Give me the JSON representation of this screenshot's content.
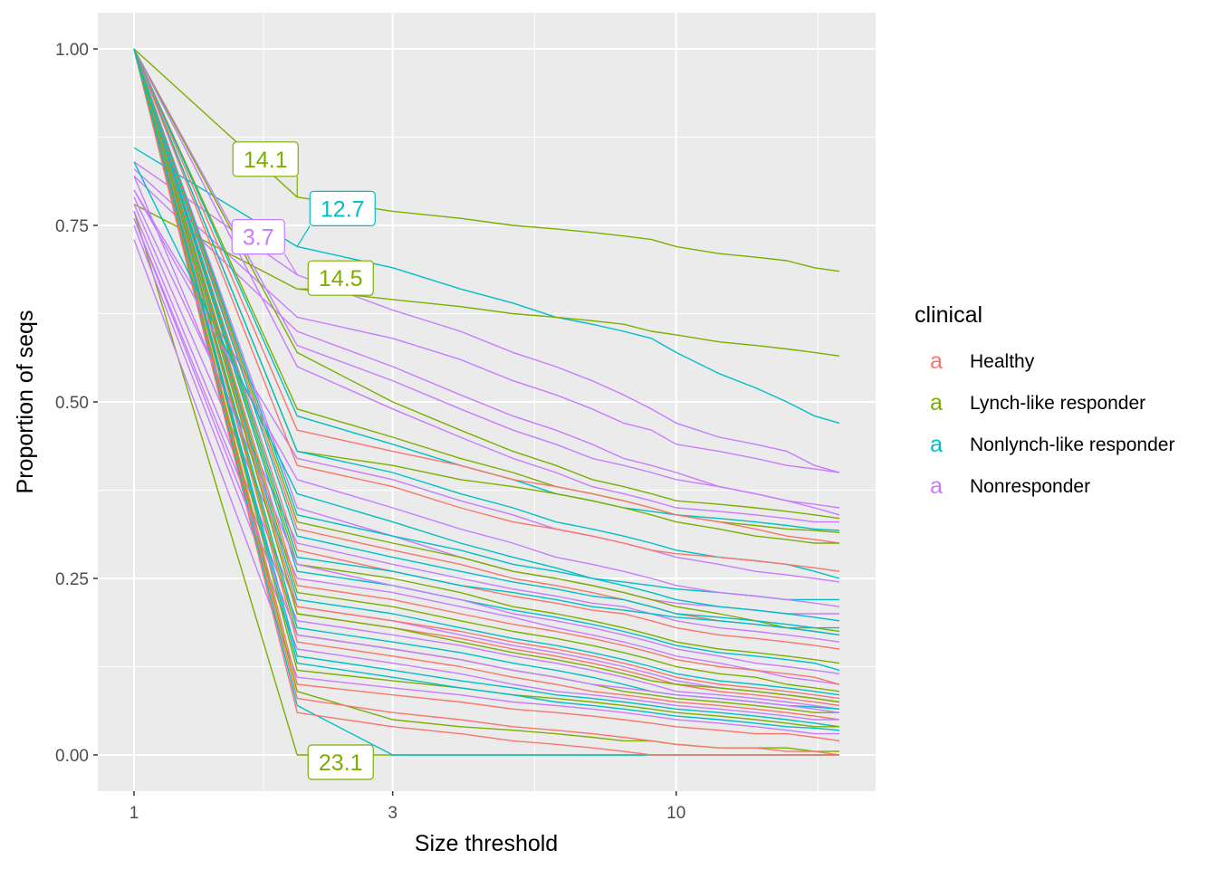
{
  "chart_data": {
    "type": "line",
    "xlabel": "Size threshold",
    "ylabel": "Proportion of seqs",
    "x_scale": "log",
    "x_ticks": [
      1,
      3,
      10
    ],
    "x_tick_labels": [
      "1",
      "3",
      "10"
    ],
    "y_ticks": [
      0,
      0.25,
      0.5,
      0.75,
      1
    ],
    "y_tick_labels": [
      "0.00",
      "0.25",
      "0.50",
      "0.75",
      "1.00"
    ],
    "xlim": [
      1,
      20
    ],
    "ylim": [
      -0.05,
      1.05
    ],
    "grid": true,
    "legend": {
      "title": "clinical",
      "position": "right",
      "key_glyph": "a",
      "entries": [
        {
          "name": "Healthy",
          "color": "#F8766D"
        },
        {
          "name": "Lynch-like responder",
          "color": "#7CAE00"
        },
        {
          "name": "Nonlynch-like responder",
          "color": "#00BFC4"
        },
        {
          "name": "Nonresponder",
          "color": "#C77CFF"
        }
      ]
    },
    "x": [
      1,
      2,
      3,
      4,
      5,
      6,
      7,
      8,
      9,
      10,
      12,
      14,
      16,
      18,
      20
    ],
    "series": [
      {
        "group": "Lynch-like responder",
        "label": "14.1",
        "values": [
          1.0,
          0.79,
          0.77,
          0.76,
          0.75,
          0.745,
          0.74,
          0.735,
          0.73,
          0.72,
          0.71,
          0.705,
          0.7,
          0.69,
          0.685
        ]
      },
      {
        "group": "Nonlynch-like responder",
        "label": "12.7",
        "values": [
          0.86,
          0.72,
          0.69,
          0.66,
          0.64,
          0.62,
          0.61,
          0.6,
          0.59,
          0.57,
          0.54,
          0.52,
          0.5,
          0.48,
          0.47
        ]
      },
      {
        "group": "Nonresponder",
        "label": "3.7",
        "values": [
          0.84,
          0.68,
          0.63,
          0.6,
          0.57,
          0.55,
          0.53,
          0.51,
          0.49,
          0.47,
          0.45,
          0.44,
          0.43,
          0.41,
          0.4
        ]
      },
      {
        "group": "Lynch-like responder",
        "label": "14.5",
        "values": [
          0.78,
          0.66,
          0.645,
          0.635,
          0.625,
          0.62,
          0.615,
          0.61,
          0.6,
          0.595,
          0.585,
          0.58,
          0.575,
          0.57,
          0.565
        ]
      },
      {
        "group": "Lynch-like responder",
        "label": "23.1",
        "values": [
          0.77,
          0.0,
          0.0,
          0.0,
          0.0,
          0.0,
          0.0,
          0.0,
          0.0,
          0.0,
          0.0,
          0.0,
          0.0,
          0.0,
          0.0
        ]
      },
      {
        "group": "Nonresponder",
        "values": [
          0.83,
          0.62,
          0.59,
          0.56,
          0.53,
          0.51,
          0.49,
          0.47,
          0.46,
          0.44,
          0.43,
          0.42,
          0.41,
          0.405,
          0.4
        ]
      },
      {
        "group": "Nonresponder",
        "values": [
          0.82,
          0.6,
          0.55,
          0.51,
          0.48,
          0.46,
          0.44,
          0.42,
          0.41,
          0.4,
          0.38,
          0.37,
          0.36,
          0.355,
          0.35
        ]
      },
      {
        "group": "Nonresponder",
        "values": [
          1.0,
          0.58,
          0.53,
          0.49,
          0.46,
          0.44,
          0.42,
          0.41,
          0.4,
          0.39,
          0.38,
          0.37,
          0.36,
          0.35,
          0.34
        ]
      },
      {
        "group": "Lynch-like responder",
        "values": [
          1.0,
          0.57,
          0.5,
          0.46,
          0.43,
          0.41,
          0.39,
          0.38,
          0.37,
          0.36,
          0.355,
          0.35,
          0.345,
          0.34,
          0.335
        ]
      },
      {
        "group": "Nonresponder",
        "values": [
          1.0,
          0.55,
          0.49,
          0.45,
          0.42,
          0.4,
          0.38,
          0.37,
          0.36,
          0.35,
          0.345,
          0.34,
          0.335,
          0.33,
          0.33
        ]
      },
      {
        "group": "Lynch-like responder",
        "values": [
          1.0,
          0.49,
          0.45,
          0.42,
          0.4,
          0.38,
          0.37,
          0.36,
          0.35,
          0.34,
          0.33,
          0.325,
          0.32,
          0.318,
          0.315
        ]
      },
      {
        "group": "Nonlynch-like responder",
        "values": [
          1.0,
          0.48,
          0.44,
          0.41,
          0.39,
          0.37,
          0.36,
          0.35,
          0.345,
          0.34,
          0.335,
          0.33,
          0.325,
          0.32,
          0.318
        ]
      },
      {
        "group": "Healthy",
        "values": [
          1.0,
          0.46,
          0.43,
          0.41,
          0.39,
          0.38,
          0.37,
          0.36,
          0.35,
          0.34,
          0.33,
          0.32,
          0.31,
          0.305,
          0.3
        ]
      },
      {
        "group": "Lynch-like responder",
        "values": [
          1.0,
          0.43,
          0.41,
          0.39,
          0.38,
          0.37,
          0.36,
          0.35,
          0.34,
          0.33,
          0.32,
          0.31,
          0.305,
          0.3,
          0.3
        ]
      },
      {
        "group": "Nonlynch-like responder",
        "values": [
          1.0,
          0.43,
          0.4,
          0.37,
          0.35,
          0.33,
          0.32,
          0.31,
          0.3,
          0.29,
          0.28,
          0.275,
          0.27,
          0.26,
          0.25
        ]
      },
      {
        "group": "Nonresponder",
        "values": [
          0.8,
          0.42,
          0.39,
          0.36,
          0.34,
          0.32,
          0.31,
          0.3,
          0.29,
          0.28,
          0.27,
          0.26,
          0.255,
          0.25,
          0.245
        ]
      },
      {
        "group": "Healthy",
        "values": [
          1.0,
          0.41,
          0.38,
          0.35,
          0.33,
          0.32,
          0.31,
          0.3,
          0.29,
          0.285,
          0.28,
          0.275,
          0.27,
          0.265,
          0.26
        ]
      },
      {
        "group": "Nonresponder",
        "values": [
          1.0,
          0.35,
          0.31,
          0.28,
          0.26,
          0.25,
          0.24,
          0.23,
          0.22,
          0.215,
          0.21,
          0.205,
          0.2,
          0.2,
          0.2
        ]
      },
      {
        "group": "Nonlynch-like responder",
        "values": [
          1.0,
          0.34,
          0.31,
          0.29,
          0.27,
          0.26,
          0.25,
          0.245,
          0.24,
          0.235,
          0.23,
          0.225,
          0.22,
          0.22,
          0.22
        ]
      },
      {
        "group": "Lynch-like responder",
        "values": [
          1.0,
          0.33,
          0.3,
          0.28,
          0.26,
          0.25,
          0.24,
          0.23,
          0.22,
          0.21,
          0.2,
          0.19,
          0.18,
          0.18,
          0.175
        ]
      },
      {
        "group": "Healthy",
        "values": [
          1.0,
          0.32,
          0.29,
          0.27,
          0.25,
          0.24,
          0.23,
          0.22,
          0.21,
          0.2,
          0.19,
          0.185,
          0.18,
          0.175,
          0.17
        ]
      },
      {
        "group": "Nonlynch-like responder",
        "values": [
          1.0,
          0.31,
          0.28,
          0.26,
          0.245,
          0.235,
          0.225,
          0.22,
          0.21,
          0.2,
          0.195,
          0.19,
          0.185,
          0.18,
          0.18
        ]
      },
      {
        "group": "Nonresponder",
        "values": [
          0.79,
          0.3,
          0.27,
          0.25,
          0.235,
          0.225,
          0.215,
          0.21,
          0.2,
          0.19,
          0.18,
          0.175,
          0.17,
          0.165,
          0.16
        ]
      },
      {
        "group": "Healthy",
        "values": [
          1.0,
          0.29,
          0.26,
          0.24,
          0.225,
          0.215,
          0.205,
          0.2,
          0.19,
          0.18,
          0.17,
          0.165,
          0.16,
          0.155,
          0.15
        ]
      },
      {
        "group": "Lynch-like responder",
        "values": [
          1.0,
          0.27,
          0.25,
          0.23,
          0.21,
          0.2,
          0.19,
          0.18,
          0.17,
          0.16,
          0.15,
          0.145,
          0.14,
          0.135,
          0.13
        ]
      },
      {
        "group": "Nonlynch-like responder",
        "values": [
          1.0,
          0.26,
          0.24,
          0.22,
          0.205,
          0.195,
          0.185,
          0.175,
          0.165,
          0.155,
          0.145,
          0.14,
          0.135,
          0.13,
          0.12
        ]
      },
      {
        "group": "Nonresponder",
        "values": [
          0.78,
          0.25,
          0.23,
          0.21,
          0.195,
          0.18,
          0.17,
          0.16,
          0.15,
          0.14,
          0.13,
          0.12,
          0.11,
          0.105,
          0.1
        ]
      },
      {
        "group": "Healthy",
        "values": [
          1.0,
          0.24,
          0.22,
          0.2,
          0.185,
          0.175,
          0.165,
          0.155,
          0.145,
          0.135,
          0.125,
          0.12,
          0.115,
          0.11,
          0.1
        ]
      },
      {
        "group": "Lynch-like responder",
        "values": [
          1.0,
          0.23,
          0.21,
          0.19,
          0.175,
          0.165,
          0.155,
          0.145,
          0.135,
          0.125,
          0.115,
          0.11,
          0.1,
          0.095,
          0.09
        ]
      },
      {
        "group": "Nonlynch-like responder",
        "values": [
          1.0,
          0.22,
          0.2,
          0.18,
          0.165,
          0.155,
          0.145,
          0.135,
          0.125,
          0.115,
          0.105,
          0.1,
          0.095,
          0.09,
          0.085
        ]
      },
      {
        "group": "Nonresponder",
        "values": [
          0.77,
          0.21,
          0.19,
          0.17,
          0.155,
          0.145,
          0.135,
          0.125,
          0.115,
          0.105,
          0.095,
          0.09,
          0.085,
          0.08,
          0.075
        ]
      },
      {
        "group": "Healthy",
        "values": [
          1.0,
          0.2,
          0.18,
          0.165,
          0.15,
          0.14,
          0.13,
          0.12,
          0.11,
          0.1,
          0.09,
          0.085,
          0.08,
          0.075,
          0.07
        ]
      },
      {
        "group": "Nonresponder",
        "values": [
          0.76,
          0.19,
          0.17,
          0.155,
          0.14,
          0.13,
          0.12,
          0.11,
          0.1,
          0.09,
          0.085,
          0.08,
          0.075,
          0.07,
          0.065
        ]
      },
      {
        "group": "Nonlynch-like responder",
        "values": [
          1.0,
          0.18,
          0.16,
          0.145,
          0.13,
          0.12,
          0.11,
          0.1,
          0.09,
          0.085,
          0.08,
          0.075,
          0.07,
          0.068,
          0.065
        ]
      },
      {
        "group": "Lynch-like responder",
        "values": [
          1.0,
          0.17,
          0.15,
          0.135,
          0.12,
          0.11,
          0.1,
          0.09,
          0.085,
          0.08,
          0.075,
          0.07,
          0.065,
          0.06,
          0.06
        ]
      },
      {
        "group": "Healthy",
        "values": [
          1.0,
          0.16,
          0.14,
          0.125,
          0.11,
          0.1,
          0.09,
          0.085,
          0.08,
          0.075,
          0.07,
          0.065,
          0.06,
          0.055,
          0.05
        ]
      },
      {
        "group": "Nonresponder",
        "values": [
          0.75,
          0.15,
          0.13,
          0.115,
          0.1,
          0.09,
          0.085,
          0.08,
          0.075,
          0.07,
          0.065,
          0.06,
          0.055,
          0.05,
          0.05
        ]
      },
      {
        "group": "Nonlynch-like responder",
        "values": [
          1.0,
          0.14,
          0.12,
          0.105,
          0.095,
          0.085,
          0.08,
          0.075,
          0.07,
          0.065,
          0.06,
          0.055,
          0.05,
          0.045,
          0.04
        ]
      },
      {
        "group": "Lynch-like responder",
        "values": [
          1.0,
          0.12,
          0.105,
          0.095,
          0.085,
          0.08,
          0.075,
          0.07,
          0.065,
          0.06,
          0.055,
          0.05,
          0.045,
          0.04,
          0.04
        ]
      },
      {
        "group": "Nonresponder",
        "values": [
          0.73,
          0.11,
          0.095,
          0.085,
          0.075,
          0.07,
          0.065,
          0.06,
          0.055,
          0.05,
          0.045,
          0.04,
          0.035,
          0.03,
          0.03
        ]
      },
      {
        "group": "Healthy",
        "values": [
          1.0,
          0.1,
          0.085,
          0.075,
          0.065,
          0.06,
          0.055,
          0.05,
          0.045,
          0.04,
          0.035,
          0.03,
          0.03,
          0.025,
          0.02
        ]
      },
      {
        "group": "Lynch-like responder",
        "values": [
          1.0,
          0.09,
          0.05,
          0.04,
          0.035,
          0.03,
          0.025,
          0.02,
          0.02,
          0.015,
          0.01,
          0.01,
          0.01,
          0.005,
          0.005
        ]
      },
      {
        "group": "Healthy",
        "values": [
          1.0,
          0.08,
          0.06,
          0.05,
          0.04,
          0.035,
          0.03,
          0.025,
          0.02,
          0.015,
          0.01,
          0.01,
          0.005,
          0.005,
          0.0
        ]
      },
      {
        "group": "Nonlynch-like responder",
        "values": [
          1.0,
          0.07,
          0.0,
          0.0,
          0.0,
          0.0,
          0.0,
          0.0,
          0.0,
          0.0,
          0.0,
          0.0,
          0.0,
          0.0,
          0.0
        ]
      },
      {
        "group": "Healthy",
        "values": [
          1.0,
          0.06,
          0.04,
          0.03,
          0.02,
          0.015,
          0.01,
          0.005,
          0.0,
          0.0,
          0.0,
          0.0,
          0.0,
          0.0,
          0.0
        ]
      },
      {
        "group": "Nonresponder",
        "values": [
          0.8,
          0.39,
          0.35,
          0.32,
          0.3,
          0.28,
          0.27,
          0.26,
          0.25,
          0.24,
          0.23,
          0.225,
          0.22,
          0.215,
          0.21
        ]
      },
      {
        "group": "Nonlynch-like responder",
        "values": [
          0.84,
          0.37,
          0.33,
          0.3,
          0.28,
          0.265,
          0.25,
          0.24,
          0.23,
          0.22,
          0.21,
          0.205,
          0.2,
          0.195,
          0.19
        ]
      },
      {
        "group": "Nonresponder",
        "values": [
          0.82,
          0.27,
          0.24,
          0.22,
          0.2,
          0.19,
          0.18,
          0.17,
          0.16,
          0.15,
          0.14,
          0.13,
          0.125,
          0.12,
          0.115
        ]
      },
      {
        "group": "Healthy",
        "values": [
          1.0,
          0.21,
          0.19,
          0.175,
          0.16,
          0.15,
          0.14,
          0.13,
          0.12,
          0.11,
          0.1,
          0.095,
          0.09,
          0.085,
          0.08
        ]
      },
      {
        "group": "Nonlynch-like responder",
        "values": [
          1.0,
          0.13,
          0.11,
          0.095,
          0.085,
          0.075,
          0.07,
          0.065,
          0.06,
          0.055,
          0.05,
          0.045,
          0.04,
          0.038,
          0.035
        ]
      },
      {
        "group": "Nonresponder",
        "values": [
          0.76,
          0.17,
          0.15,
          0.135,
          0.12,
          0.11,
          0.1,
          0.095,
          0.09,
          0.085,
          0.08,
          0.075,
          0.07,
          0.065,
          0.06
        ]
      },
      {
        "group": "Lynch-like responder",
        "values": [
          1.0,
          0.2,
          0.18,
          0.16,
          0.145,
          0.135,
          0.125,
          0.115,
          0.105,
          0.1,
          0.095,
          0.09,
          0.085,
          0.08,
          0.075
        ]
      },
      {
        "group": "Nonlynch-like responder",
        "values": [
          1.0,
          0.28,
          0.26,
          0.24,
          0.23,
          0.22,
          0.21,
          0.205,
          0.2,
          0.195,
          0.19,
          0.185,
          0.18,
          0.175,
          0.17
        ]
      }
    ]
  }
}
